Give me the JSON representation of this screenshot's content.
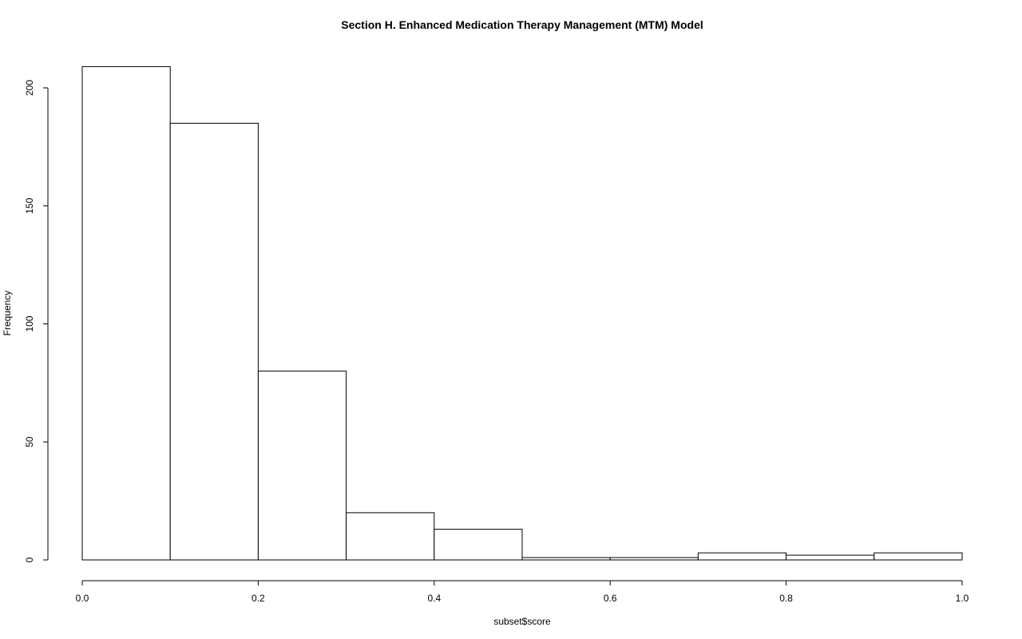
{
  "chart_data": {
    "type": "bar",
    "title": "Section H.  Enhanced Medication Therapy Management (MTM) Model",
    "xlabel": "subset$score",
    "ylabel": "Frequency",
    "bins": [
      {
        "start": 0.0,
        "end": 0.1,
        "count": 209
      },
      {
        "start": 0.1,
        "end": 0.2,
        "count": 185
      },
      {
        "start": 0.2,
        "end": 0.3,
        "count": 80
      },
      {
        "start": 0.3,
        "end": 0.4,
        "count": 20
      },
      {
        "start": 0.4,
        "end": 0.5,
        "count": 13
      },
      {
        "start": 0.5,
        "end": 0.6,
        "count": 1
      },
      {
        "start": 0.6,
        "end": 0.7,
        "count": 1
      },
      {
        "start": 0.7,
        "end": 0.8,
        "count": 3
      },
      {
        "start": 0.8,
        "end": 0.9,
        "count": 2
      },
      {
        "start": 0.9,
        "end": 1.0,
        "count": 3
      }
    ],
    "xlim": [
      0,
      1
    ],
    "ylim": [
      0,
      209
    ],
    "x_ticks": [
      {
        "value": 0.0,
        "label": "0.0"
      },
      {
        "value": 0.2,
        "label": "0.2"
      },
      {
        "value": 0.4,
        "label": "0.4"
      },
      {
        "value": 0.6,
        "label": "0.6"
      },
      {
        "value": 0.8,
        "label": "0.8"
      },
      {
        "value": 1.0,
        "label": "1.0"
      }
    ],
    "y_ticks": [
      {
        "value": 0,
        "label": "0"
      },
      {
        "value": 50,
        "label": "50"
      },
      {
        "value": 100,
        "label": "100"
      },
      {
        "value": 150,
        "label": "150"
      },
      {
        "value": 200,
        "label": "200"
      }
    ],
    "grid": false,
    "legend": "none",
    "colors": {
      "bar_fill": "#ffffff",
      "bar_stroke": "#000000"
    }
  }
}
